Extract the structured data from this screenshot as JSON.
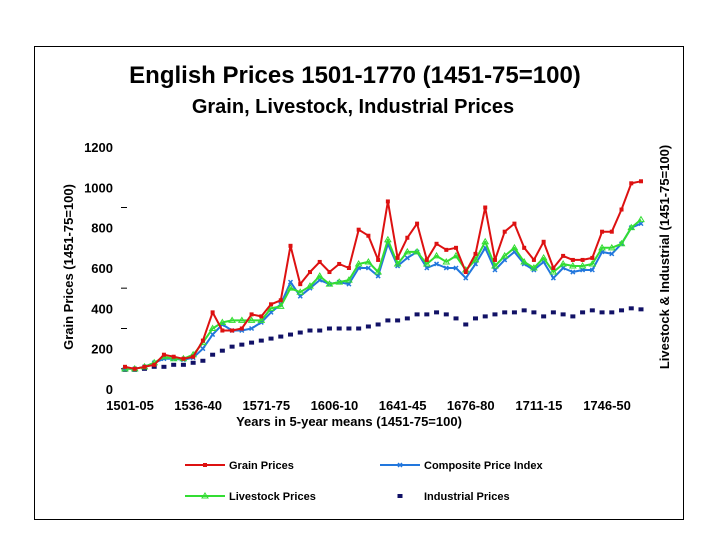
{
  "chart_data": {
    "type": "line",
    "title": "English Prices 1501-1770 (1451-75=100)",
    "subtitle": "Grain, Livestock, Industrial Prices",
    "xlabel": "Years in 5-year means (1451-75=100)",
    "ylabel": "Grain Prices (1451-75=100)",
    "ylabel_right": "Livestock & Industrial (1451-75=100)",
    "ylim": [
      0,
      1200
    ],
    "yticks": [
      0,
      200,
      400,
      600,
      800,
      1000,
      1200
    ],
    "categories": [
      "1501-05",
      "1506-10",
      "1511-15",
      "1516-20",
      "1521-25",
      "1526-30",
      "1531-35",
      "1536-40",
      "1541-45",
      "1546-50",
      "1551-55",
      "1556-60",
      "1561-65",
      "1566-70",
      "1571-75",
      "1576-80",
      "1581-85",
      "1586-90",
      "1591-95",
      "1596-1600",
      "1601-05",
      "1606-10",
      "1611-15",
      "1616-20",
      "1621-25",
      "1626-30",
      "1631-35",
      "1636-40",
      "1641-45",
      "1646-50",
      "1651-55",
      "1656-60",
      "1661-65",
      "1666-70",
      "1671-75",
      "1676-80",
      "1681-85",
      "1686-90",
      "1691-95",
      "1696-1700",
      "1701-05",
      "1706-10",
      "1711-15",
      "1716-20",
      "1721-25",
      "1726-30",
      "1731-35",
      "1736-40",
      "1741-45",
      "1746-50",
      "1751-55",
      "1756-60",
      "1761-65",
      "1766-70"
    ],
    "xtick_labels": [
      "1501-05",
      "1536-40",
      "1571-75",
      "1606-10",
      "1641-45",
      "1676-80",
      "1711-15",
      "1746-50"
    ],
    "xtick_indices": [
      0,
      7,
      14,
      21,
      28,
      35,
      42,
      49
    ],
    "series": [
      {
        "name": "Grain Prices",
        "color": "#dd1111",
        "marker": "square",
        "values": [
          110,
          100,
          110,
          120,
          170,
          160,
          150,
          160,
          240,
          380,
          290,
          290,
          300,
          370,
          360,
          420,
          440,
          710,
          520,
          580,
          630,
          580,
          620,
          600,
          790,
          760,
          640,
          930,
          650,
          750,
          820,
          640,
          720,
          690,
          700,
          580,
          670,
          900,
          640,
          780,
          820,
          700,
          640,
          730,
          600,
          660,
          640,
          640,
          650,
          780,
          780,
          890,
          1020,
          1030
        ]
      },
      {
        "name": "Composite Price Index",
        "color": "#2277dd",
        "marker": "x",
        "values": [
          100,
          100,
          110,
          130,
          150,
          150,
          145,
          155,
          200,
          270,
          320,
          290,
          290,
          300,
          330,
          380,
          420,
          530,
          460,
          500,
          540,
          520,
          530,
          520,
          600,
          600,
          560,
          720,
          610,
          650,
          680,
          600,
          620,
          600,
          600,
          550,
          620,
          700,
          590,
          640,
          680,
          620,
          590,
          630,
          550,
          600,
          580,
          590,
          590,
          680,
          670,
          720,
          800,
          820
        ]
      },
      {
        "name": "Livestock Prices",
        "color": "#33dd33",
        "marker": "triangle",
        "values": [
          100,
          100,
          110,
          130,
          160,
          150,
          150,
          170,
          230,
          300,
          330,
          340,
          340,
          340,
          340,
          400,
          410,
          500,
          480,
          510,
          560,
          520,
          530,
          540,
          620,
          630,
          580,
          740,
          620,
          680,
          680,
          620,
          660,
          630,
          660,
          590,
          640,
          730,
          610,
          660,
          700,
          630,
          600,
          650,
          580,
          620,
          610,
          610,
          620,
          700,
          700,
          720,
          800,
          840
        ]
      },
      {
        "name": "Industrial Prices",
        "color": "#111166",
        "marker": "dash",
        "values": [
          95,
          95,
          100,
          110,
          110,
          120,
          120,
          130,
          140,
          170,
          190,
          210,
          220,
          230,
          240,
          250,
          260,
          270,
          280,
          290,
          290,
          300,
          300,
          300,
          300,
          310,
          320,
          340,
          340,
          350,
          370,
          370,
          380,
          370,
          350,
          320,
          350,
          360,
          370,
          380,
          380,
          390,
          380,
          360,
          380,
          370,
          360,
          380,
          390,
          380,
          380,
          390,
          400,
          395
        ]
      }
    ],
    "legend": {
      "position": "bottom"
    }
  }
}
